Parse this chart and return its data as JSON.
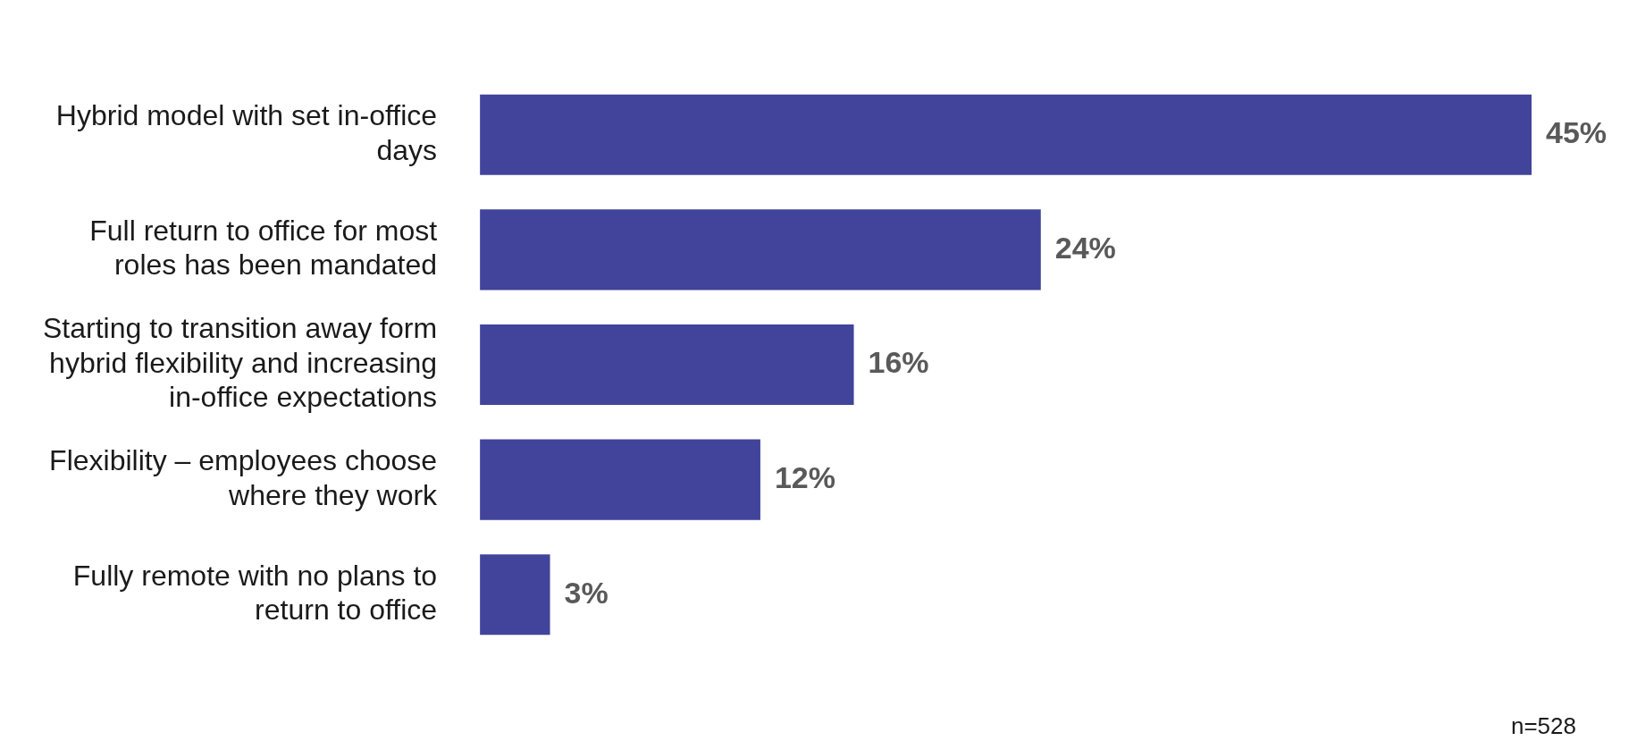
{
  "chart_data": {
    "type": "bar",
    "orientation": "horizontal",
    "categories": [
      "Hybrid model with set in-office days",
      "Full return to office for most roles has been mandated",
      "Starting to transition away form hybrid flexibility and increasing in-office expectations",
      "Flexibility – employees choose where they work",
      "Fully remote with no plans to return to office"
    ],
    "values": [
      45,
      24,
      16,
      12,
      3
    ],
    "value_labels": [
      "45%",
      "24%",
      "16%",
      "12%",
      "3%"
    ],
    "color": "#42439a",
    "grid": false,
    "legend": false,
    "annotations": [
      "n=528"
    ]
  }
}
